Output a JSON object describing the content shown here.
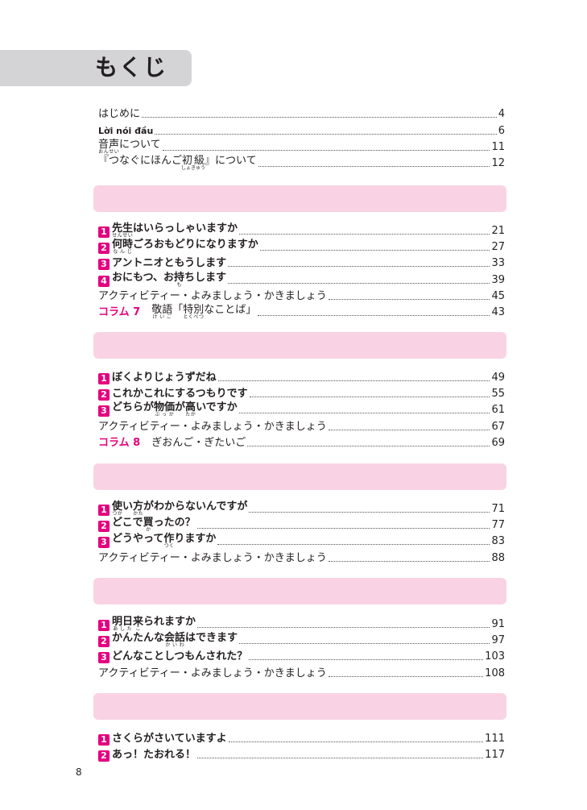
{
  "title": "もくじ",
  "page_number": "8",
  "accent_color": "#e4007f",
  "band_color": "#f9d3e3",
  "intro": [
    {
      "text": [
        [
          "はじめに"
        ]
      ],
      "page": "4"
    },
    {
      "text": [
        [
          "Lời nói đầu"
        ]
      ],
      "page": "6",
      "small": true
    },
    {
      "text": [
        [
          "音声",
          "おんせい"
        ],
        [
          "について"
        ]
      ],
      "page": "11"
    },
    {
      "text": [
        [
          "『つなぐにほんご"
        ],
        [
          "初級",
          "しょきゅう"
        ],
        [
          "』について"
        ]
      ],
      "page": "12"
    }
  ],
  "sections": [
    {
      "rows": [
        {
          "num": "1",
          "text": [
            [
              "先生",
              "せんせい"
            ],
            [
              "はいらっしゃいますか"
            ]
          ],
          "page": "21"
        },
        {
          "num": "2",
          "text": [
            [
              "何時",
              "なんじ"
            ],
            [
              "ごろおもどりになりますか"
            ]
          ],
          "page": "27"
        },
        {
          "num": "3",
          "text": [
            [
              "アントニオともうします"
            ]
          ],
          "page": "33"
        },
        {
          "num": "4",
          "text": [
            [
              "おにもつ、お"
            ],
            [
              "持",
              "も"
            ],
            [
              "ちします"
            ]
          ],
          "page": "39"
        },
        {
          "text": [
            [
              "アクティビティー・よみましょう・かきましょう"
            ]
          ],
          "page": "45"
        },
        {
          "column": "コラム 7",
          "text": [
            [
              "敬語",
              "けいご"
            ],
            [
              "「"
            ],
            [
              "特別",
              "とくべつ"
            ],
            [
              "なことば」"
            ]
          ],
          "page": "43"
        }
      ]
    },
    {
      "rows": [
        {
          "num": "1",
          "text": [
            [
              "ぼくよりじょうずだね"
            ]
          ],
          "page": "49"
        },
        {
          "num": "2",
          "text": [
            [
              "これかこれにするつもりです"
            ]
          ],
          "page": "55"
        },
        {
          "num": "3",
          "text": [
            [
              "どちらが"
            ],
            [
              "物価",
              "ぶっか"
            ],
            [
              "が"
            ],
            [
              "高",
              "たか"
            ],
            [
              "いですか"
            ]
          ],
          "page": "61"
        },
        {
          "text": [
            [
              "アクティビティー・よみましょう・かきましょう"
            ]
          ],
          "page": "67"
        },
        {
          "column": "コラム 8",
          "text": [
            [
              "ぎおんご・ぎたいご"
            ]
          ],
          "page": "69"
        }
      ]
    },
    {
      "rows": [
        {
          "num": "1",
          "text": [
            [
              "使",
              "つか"
            ],
            [
              "い"
            ],
            [
              "方",
              "かた"
            ],
            [
              "がわからないんですが"
            ]
          ],
          "page": "71"
        },
        {
          "num": "2",
          "text": [
            [
              "どこで"
            ],
            [
              "買",
              "か"
            ],
            [
              "ったの？"
            ]
          ],
          "page": "77"
        },
        {
          "num": "3",
          "text": [
            [
              "どうやって"
            ],
            [
              "作",
              "つく"
            ],
            [
              "りますか"
            ]
          ],
          "page": "83"
        },
        {
          "text": [
            [
              "アクティビティー・よみましょう・かきましょう"
            ]
          ],
          "page": "88"
        }
      ]
    },
    {
      "rows": [
        {
          "num": "1",
          "text": [
            [
              "明日",
              "あした"
            ],
            [
              "来",
              "こ"
            ],
            [
              "られますか"
            ]
          ],
          "page": "91"
        },
        {
          "num": "2",
          "text": [
            [
              "かんたんな"
            ],
            [
              "会話",
              "かいわ"
            ],
            [
              "はできます"
            ]
          ],
          "page": "97"
        },
        {
          "num": "3",
          "text": [
            [
              "どんなことしつもんされた？"
            ]
          ],
          "page": "103"
        },
        {
          "text": [
            [
              "アクティビティー・よみましょう・かきましょう"
            ]
          ],
          "page": "108"
        }
      ]
    },
    {
      "rows": [
        {
          "num": "1",
          "text": [
            [
              "さくらがさいていますよ"
            ]
          ],
          "page": "111"
        },
        {
          "num": "2",
          "text": [
            [
              "あっ！たおれる！"
            ]
          ],
          "page": "117"
        }
      ]
    }
  ]
}
